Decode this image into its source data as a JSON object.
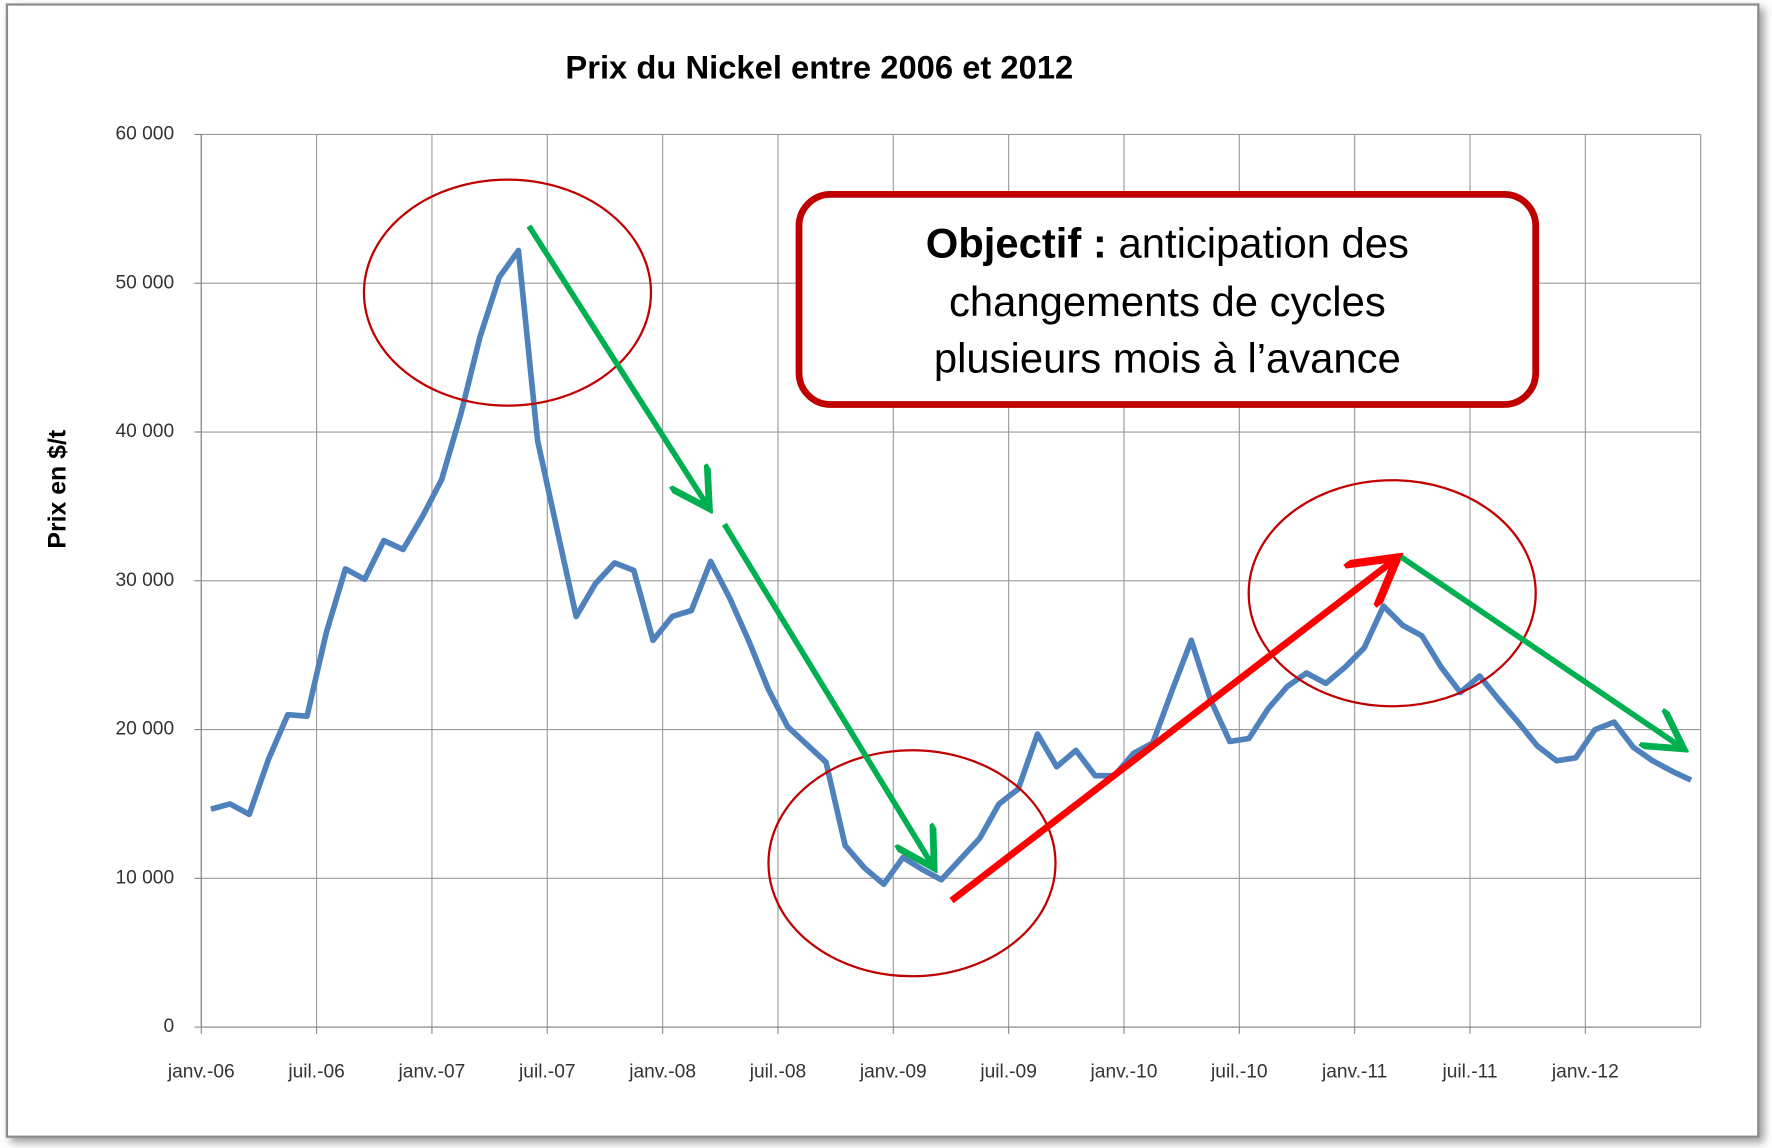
{
  "chart_data": {
    "type": "line",
    "title": "Prix du Nickel entre 2006 et 2012",
    "y_label": "Prix en $/t",
    "annotation": {
      "bold": "Objectif :",
      "lines": [
        "anticipation des",
        "changements de cycles",
        "plusieurs mois à l’avance"
      ]
    },
    "categories": [
      "janv.-06",
      null,
      null,
      null,
      null,
      null,
      "juil.-06",
      null,
      null,
      null,
      null,
      null,
      "janv.-07",
      null,
      null,
      null,
      null,
      null,
      "juil.-07",
      null,
      null,
      null,
      null,
      null,
      "janv.-08",
      null,
      null,
      null,
      null,
      null,
      "juil.-08",
      null,
      null,
      null,
      null,
      null,
      "janv.-09",
      null,
      null,
      null,
      null,
      null,
      "juil.-09",
      null,
      null,
      null,
      null,
      null,
      "janv.-10",
      null,
      null,
      null,
      null,
      null,
      "juil.-10",
      null,
      null,
      null,
      null,
      null,
      "janv.-11",
      null,
      null,
      null,
      null,
      null,
      "juil.-11",
      null,
      null,
      null,
      null,
      null,
      "janv.-12",
      null,
      null,
      null,
      null,
      null
    ],
    "series": [
      {
        "name": "Prix du Nickel",
        "color": "#4f81bd",
        "values": [
          14650,
          15000,
          14300,
          18000,
          21000,
          20900,
          26500,
          30800,
          30100,
          32700,
          32100,
          34300,
          36800,
          41200,
          46400,
          50400,
          52200,
          39400,
          33500,
          27600,
          29800,
          31200,
          30700,
          26000,
          27600,
          28000,
          31300,
          28800,
          25900,
          22700,
          20200,
          19000,
          17800,
          12200,
          10700,
          9600,
          11400,
          10600,
          9900,
          11300,
          12700,
          15000,
          16000,
          19700,
          17500,
          18600,
          16900,
          16900,
          18400,
          19100,
          22600,
          26000,
          22000,
          19200,
          19400,
          21400,
          22900,
          23800,
          23100,
          24200,
          25500,
          28300,
          27000,
          26300,
          24200,
          22500,
          23600,
          22000,
          20500,
          18900,
          17900,
          18100,
          20000,
          20500,
          18800,
          17900,
          17200,
          16600
        ]
      }
    ],
    "ylim": [
      0,
      60000
    ],
    "yticks": [
      0,
      {
        "value": 10000,
        "label": "10 000"
      },
      {
        "value": 20000,
        "label": "20 000"
      },
      {
        "value": 30000,
        "label": "30 000"
      },
      {
        "value": 40000,
        "label": "40 000"
      },
      {
        "value": 50000,
        "label": "50 000"
      },
      {
        "value": 60000,
        "label": "60 000"
      }
    ],
    "grid": true
  }
}
